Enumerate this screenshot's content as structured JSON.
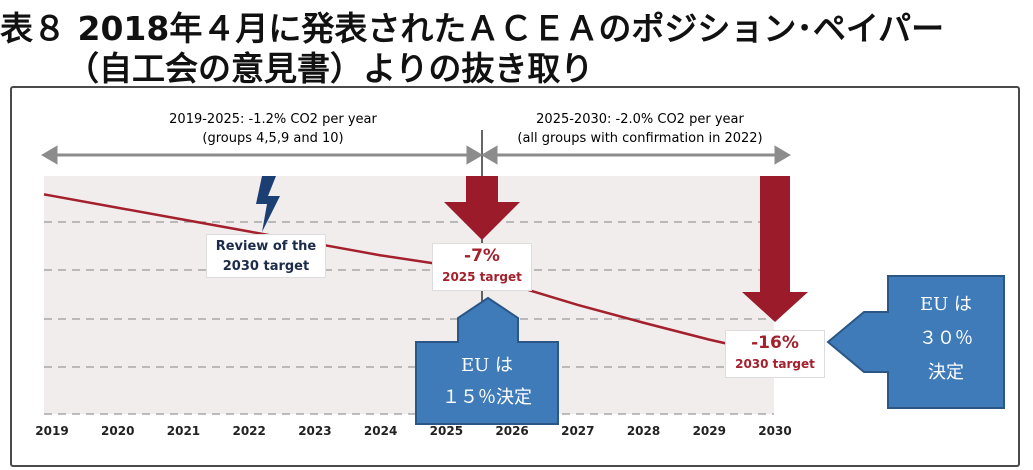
{
  "title_line1": "表８ 2018年４月に発表されたＡＣＥＡのポジション･ペイパー",
  "title_line2": "（自工会の意見書）よりの抜き取り",
  "period1": {
    "line1": "2019-2025: -1.2% CO2 per year",
    "line2": "(groups 4,5,9 and 10)"
  },
  "period2": {
    "line1": "2025-2030: -2.0% CO2 per year",
    "line2": "(all groups with confirmation in 2022)"
  },
  "review_label": {
    "line1": "Review of the",
    "line2": "2030 target"
  },
  "target_2025": {
    "pct": "-7%",
    "label": "2025 target"
  },
  "target_2030": {
    "pct": "-16%",
    "label": "2030 target"
  },
  "eu_15": {
    "line1": "EU は",
    "line2": "１５％決定"
  },
  "eu_30": {
    "line1": "EU は",
    "line2": "３０％",
    "line3": "決定"
  },
  "colors": {
    "line": "#a3202c",
    "arrow": "#9b1b2a",
    "blue": "#3f7bb8",
    "review": "#1c3f73"
  },
  "chart_data": {
    "type": "line",
    "x": [
      "2019",
      "2020",
      "2021",
      "2022",
      "2023",
      "2024",
      "2025",
      "2026",
      "2027",
      "2028",
      "2029",
      "2030"
    ],
    "series": [
      {
        "values": [
          0,
          -1.2,
          -2.4,
          -3.6,
          -4.8,
          -6.0,
          -7.0,
          -9.0,
          -11.0,
          -12.8,
          -14.5,
          -16.0
        ]
      }
    ],
    "ylim": [
      -22,
      2
    ],
    "grid": "dashed horizontal",
    "annotations": [
      "-7% 2025 target",
      "-16% 2030 target",
      "Review of the 2030 target"
    ]
  }
}
